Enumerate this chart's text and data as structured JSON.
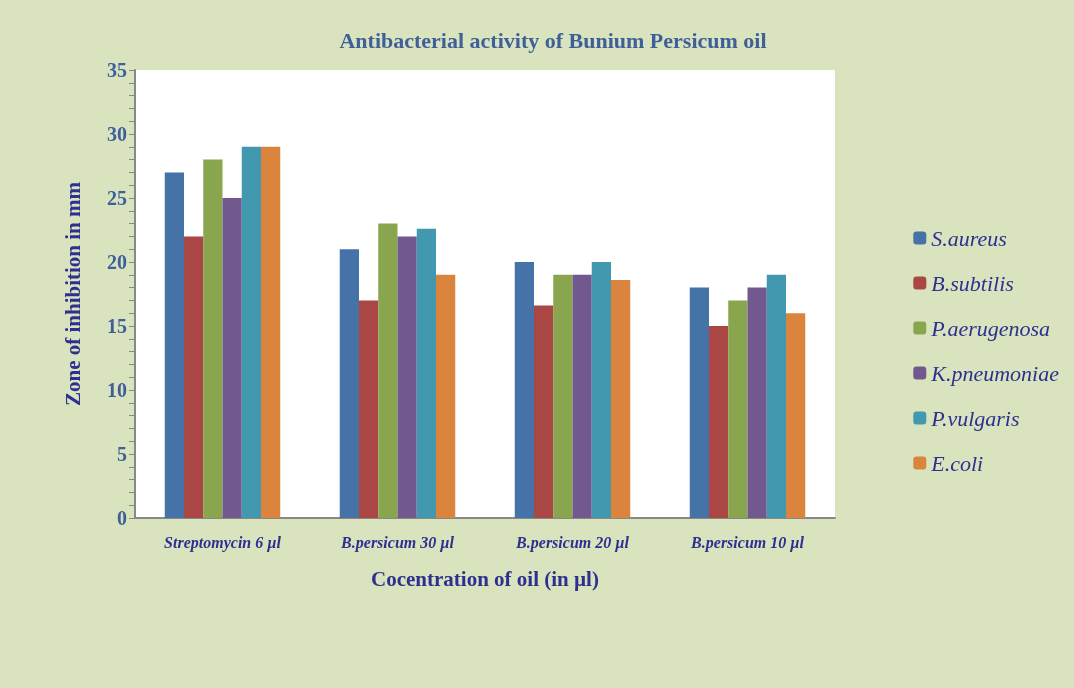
{
  "chart_data": {
    "type": "bar",
    "title": "Antibacterial activity of Bunium Persicum oil",
    "xlabel": "Cocentration of oil (in µl)",
    "ylabel": "Zone of inhibition in mm",
    "categories": [
      "Streptomycin 6 µl",
      "B.persicum 30 µl",
      "B.persicum 20 µl",
      "B.persicum 10 µl"
    ],
    "series": [
      {
        "name": "S.aureus",
        "color": "#4572a7",
        "values": [
          27,
          21,
          20,
          18
        ]
      },
      {
        "name": "B.subtilis",
        "color": "#aa4643",
        "values": [
          22,
          17,
          16.6,
          15
        ]
      },
      {
        "name": "P.aerugenosa",
        "color": "#89a54e",
        "values": [
          28,
          23,
          19,
          17
        ]
      },
      {
        "name": "K.pneumoniae",
        "color": "#71588f",
        "values": [
          25,
          22,
          19,
          18
        ]
      },
      {
        "name": "P.vulgaris",
        "color": "#4198af",
        "values": [
          29,
          22.6,
          20,
          19
        ]
      },
      {
        "name": "E.coli",
        "color": "#db843d",
        "values": [
          29,
          19,
          18.6,
          16
        ]
      }
    ],
    "ylim": [
      0,
      35
    ],
    "yticks": [
      0,
      5,
      10,
      15,
      20,
      25,
      30,
      35
    ],
    "grid": false,
    "legend": "right"
  }
}
